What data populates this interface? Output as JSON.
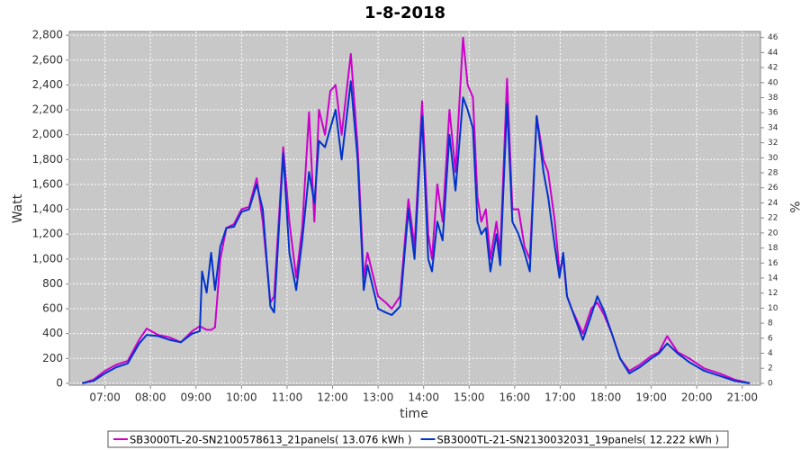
{
  "chart_data": {
    "type": "line",
    "title": "1-8-2018",
    "x_label": "time",
    "y_label": "Watt",
    "y2_label": "%",
    "x": [
      "06:30",
      "06:45",
      "07:00",
      "07:15",
      "07:30",
      "07:45",
      "07:55",
      "08:10",
      "08:25",
      "08:40",
      "08:55",
      "09:05",
      "09:08",
      "09:14",
      "09:20",
      "09:25",
      "09:32",
      "09:40",
      "09:50",
      "10:00",
      "10:10",
      "10:20",
      "10:28",
      "10:38",
      "10:43",
      "10:55",
      "11:03",
      "11:12",
      "11:20",
      "11:29",
      "11:36",
      "11:42",
      "11:50",
      "11:57",
      "12:04",
      "12:12",
      "12:24",
      "12:33",
      "12:41",
      "12:46",
      "12:52",
      "13:00",
      "13:10",
      "13:18",
      "13:29",
      "13:40",
      "13:48",
      "13:58",
      "14:06",
      "14:11",
      "14:18",
      "14:25",
      "14:34",
      "14:42",
      "14:52",
      "14:58",
      "15:05",
      "15:11",
      "15:16",
      "15:22",
      "15:28",
      "15:36",
      "15:41",
      "15:50",
      "15:57",
      "16:05",
      "16:13",
      "16:20",
      "16:29",
      "16:38",
      "16:44",
      "16:53",
      "16:59",
      "17:04",
      "17:09",
      "17:15",
      "17:30",
      "17:41",
      "17:49",
      "17:58",
      "18:08",
      "18:19",
      "18:31",
      "18:45",
      "19:00",
      "19:10",
      "19:21",
      "19:35",
      "19:50",
      "20:10",
      "20:30",
      "20:50",
      "21:10"
    ],
    "series": [
      {
        "name": "SB3000TL-20-SN2100578613_21panels( 13.076 kWh )",
        "color": "#cc00cc",
        "values": [
          0,
          30,
          100,
          150,
          180,
          350,
          440,
          390,
          370,
          330,
          420,
          460,
          450,
          430,
          430,
          450,
          1000,
          1250,
          1280,
          1400,
          1420,
          1650,
          1300,
          650,
          700,
          1900,
          1300,
          850,
          1250,
          2180,
          1300,
          2200,
          2000,
          2350,
          2400,
          2000,
          2650,
          1900,
          850,
          1050,
          900,
          700,
          650,
          600,
          700,
          1480,
          1100,
          2270,
          1200,
          1000,
          1600,
          1300,
          2200,
          1700,
          2780,
          2400,
          2300,
          1500,
          1300,
          1400,
          1000,
          1300,
          1050,
          2450,
          1400,
          1400,
          1100,
          1000,
          2150,
          1800,
          1700,
          1300,
          900,
          1000,
          700,
          600,
          400,
          600,
          650,
          550,
          400,
          200,
          100,
          150,
          220,
          250,
          380,
          250,
          200,
          120,
          80,
          30,
          0
        ]
      },
      {
        "name": "SB3000TL-21-SN2130032031_19panels( 12.222 kWh )",
        "color": "#0033cc",
        "values": [
          0,
          20,
          80,
          130,
          160,
          320,
          390,
          380,
          350,
          330,
          400,
          420,
          900,
          730,
          1050,
          750,
          1100,
          1250,
          1260,
          1380,
          1400,
          1600,
          1400,
          620,
          570,
          1850,
          1050,
          750,
          1150,
          1700,
          1450,
          1950,
          1900,
          2050,
          2200,
          1800,
          2430,
          1800,
          750,
          950,
          800,
          600,
          570,
          550,
          620,
          1400,
          1000,
          2150,
          1000,
          900,
          1300,
          1150,
          2000,
          1550,
          2300,
          2200,
          2050,
          1300,
          1200,
          1250,
          900,
          1200,
          950,
          2250,
          1300,
          1200,
          1050,
          900,
          2150,
          1700,
          1500,
          1100,
          850,
          1050,
          700,
          600,
          350,
          550,
          700,
          580,
          400,
          200,
          80,
          130,
          200,
          240,
          320,
          240,
          170,
          100,
          60,
          20,
          0
        ]
      }
    ],
    "xlim": [
      "06:13",
      "21:24"
    ],
    "xticks": [
      "07:00",
      "08:00",
      "09:00",
      "10:00",
      "11:00",
      "12:00",
      "13:00",
      "14:00",
      "15:00",
      "16:00",
      "17:00",
      "18:00",
      "19:00",
      "20:00",
      "21:00"
    ],
    "ylim": [
      -15,
      2830
    ],
    "yticks": [
      0,
      200,
      400,
      600,
      800,
      {
        "value": 1000,
        "label": "1,000"
      },
      {
        "value": 1200,
        "label": "1,200"
      },
      {
        "value": 1400,
        "label": "1,400"
      },
      {
        "value": 1600,
        "label": "1,600"
      },
      {
        "value": 1800,
        "label": "1,800"
      },
      {
        "value": 2000,
        "label": "2,000"
      },
      {
        "value": 2200,
        "label": "2,200"
      },
      {
        "value": 2400,
        "label": "2,400"
      },
      {
        "value": 2600,
        "label": "2,600"
      },
      {
        "value": 2800,
        "label": "2,800"
      }
    ],
    "y2lim": [
      -0.25,
      46.8
    ],
    "y2ticks": [
      0,
      2,
      4,
      6,
      8,
      10,
      12,
      14,
      16,
      18,
      20,
      22,
      24,
      26,
      28,
      30,
      32,
      34,
      36,
      38,
      40,
      42,
      44,
      46
    ],
    "grid": true,
    "legend": "bottom"
  }
}
